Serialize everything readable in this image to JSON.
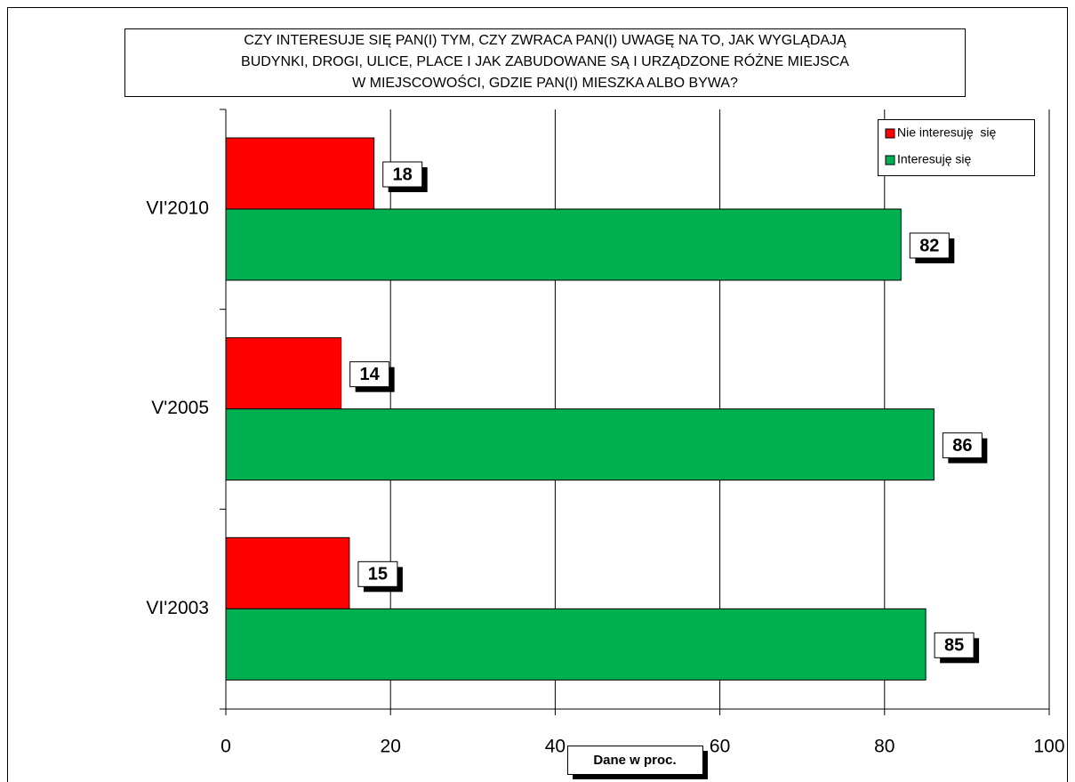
{
  "chart_data": {
    "type": "barh",
    "title": [
      "CZY INTERESUJE SIĘ PAN(I) TYM, CZY ZWRACA PAN(I) UWAGĘ NA TO, JAK WYGLĄDAJĄ",
      "BUDYNKI, DROGI, ULICE, PLACE I JAK ZABUDOWANE SĄ I URZĄDZONE RÓŻNE MIEJSCA",
      "W MIEJSCOWOŚCI, GDZIE PAN(I) MIESZKA ALBO BYWA?"
    ],
    "categories": [
      "VI'2010",
      "V'2005",
      "VI'2003"
    ],
    "series": [
      {
        "name": "Nie interesuję  się",
        "color": "#ff0000",
        "values": [
          18,
          14,
          15
        ]
      },
      {
        "name": "Interesuję się",
        "color": "#00b050",
        "values": [
          82,
          86,
          85
        ]
      }
    ],
    "xlim": [
      0,
      100
    ],
    "xticks": [
      0,
      20,
      40,
      60,
      80,
      100
    ],
    "grid": true,
    "legend": "upper right",
    "annotation": "Dane w proc."
  }
}
